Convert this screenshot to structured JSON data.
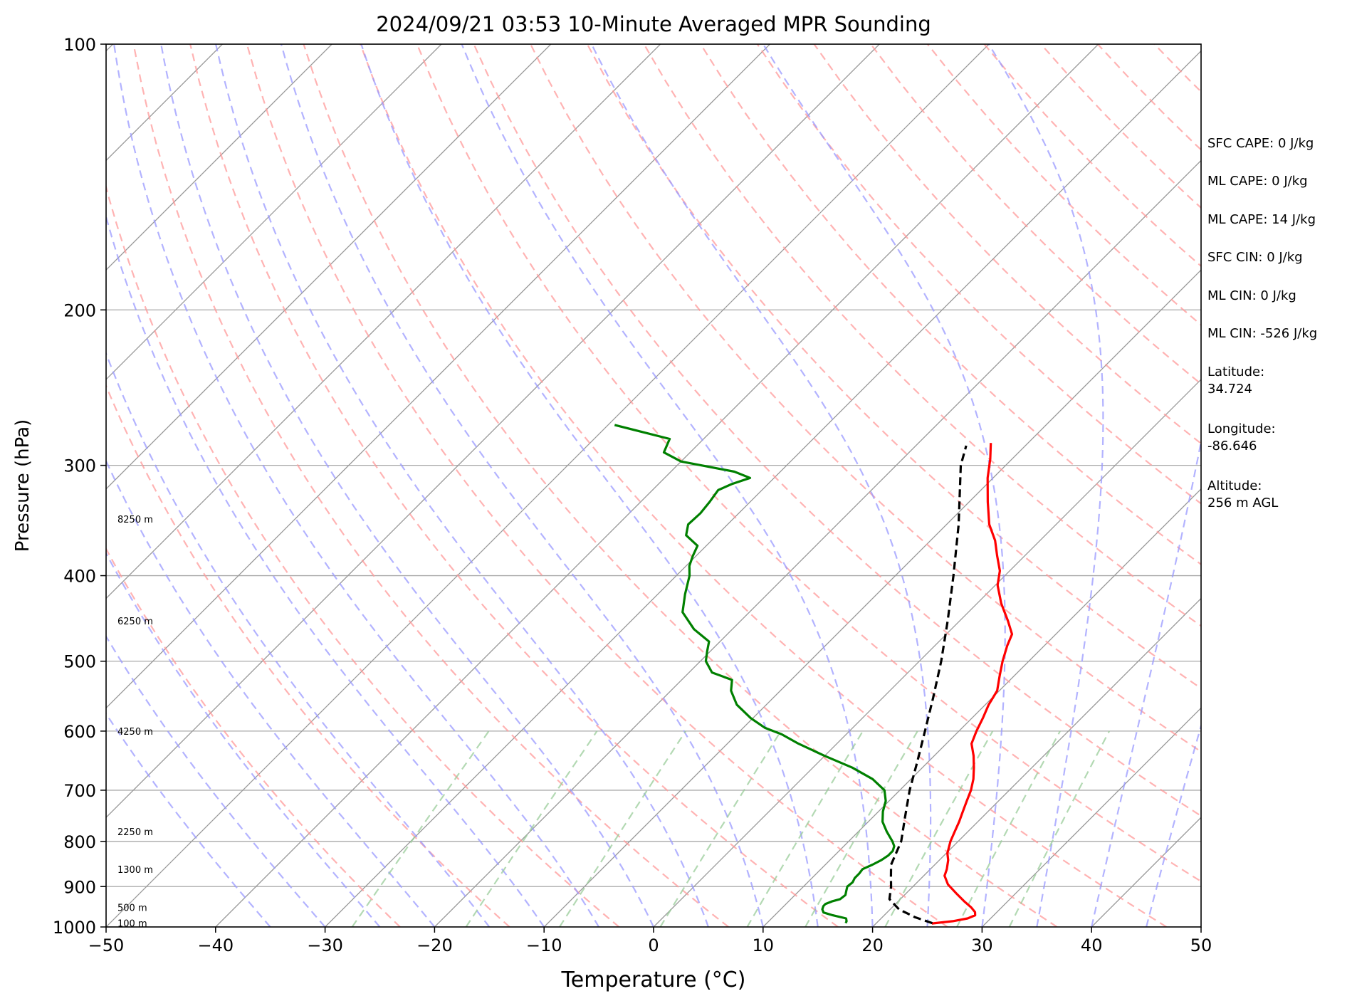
{
  "chart_data": {
    "type": "line",
    "subtype": "skew-t log-p",
    "title": "2024/09/21 03:53 10-Minute Averaged MPR Sounding",
    "xlabel": "Temperature (°C)",
    "ylabel": "Pressure (hPa)",
    "xlim": [
      -50,
      50
    ],
    "ylim": [
      1000,
      100
    ],
    "y_scale": "log",
    "x_ticks": [
      -50,
      -40,
      -30,
      -20,
      -10,
      0,
      10,
      20,
      30,
      40,
      50
    ],
    "x_tick_labels": [
      "−50",
      "−40",
      "−30",
      "−20",
      "−10",
      "0",
      "10",
      "20",
      "30",
      "40",
      "50"
    ],
    "y_ticks": [
      1000,
      900,
      800,
      700,
      600,
      500,
      400,
      300,
      200,
      100
    ],
    "y_tick_labels": [
      "1000",
      "900",
      "800",
      "700",
      "600",
      "500",
      "400",
      "300",
      "200",
      "100"
    ],
    "grid": true,
    "height_labels": [
      {
        "p": 990,
        "text": "100 m"
      },
      {
        "p": 950,
        "text": "500 m"
      },
      {
        "p": 860,
        "text": "1300 m"
      },
      {
        "p": 780,
        "text": "2250 m"
      },
      {
        "p": 600,
        "text": "4250 m"
      },
      {
        "p": 450,
        "text": "6250 m"
      },
      {
        "p": 345,
        "text": "8250 m"
      }
    ],
    "background_lines": {
      "isotherms": {
        "color": "#999999",
        "values_c": [
          -160,
          -150,
          -140,
          -130,
          -120,
          -110,
          -100,
          -90,
          -80,
          -70,
          -60,
          -50,
          -40,
          -30,
          -20,
          -10,
          0,
          10,
          20,
          30,
          40,
          50
        ]
      },
      "dry_adiabats": {
        "color": "#ff9999",
        "theta_k": [
          250,
          260,
          270,
          280,
          290,
          300,
          310,
          320,
          330,
          340,
          350,
          360,
          370,
          380,
          390,
          400,
          410,
          420,
          430,
          440,
          450,
          460,
          470,
          480,
          490,
          500
        ]
      },
      "moist_adiabats": {
        "color": "#9999ff",
        "start_c": [
          -35,
          -30,
          -25,
          -20,
          -15,
          -10,
          -5,
          0,
          5,
          10,
          15,
          20,
          25,
          30,
          35,
          40,
          45,
          50
        ]
      },
      "mixing_ratio": {
        "color": "#99cc99",
        "values_gkg": [
          0.4,
          1,
          2,
          4,
          7,
          10,
          16,
          24,
          32
        ],
        "p_top": 600
      }
    },
    "series": [
      {
        "color": "#ff0000",
        "points": [
          [
            991,
            25.1
          ],
          [
            985,
            26.8
          ],
          [
            978,
            27.9
          ],
          [
            970,
            28.3
          ],
          [
            962,
            28.0
          ],
          [
            950,
            27.2
          ],
          [
            935,
            26.0
          ],
          [
            915,
            24.5
          ],
          [
            895,
            23.0
          ],
          [
            875,
            21.9
          ],
          [
            860,
            21.5
          ],
          [
            840,
            20.8
          ],
          [
            825,
            20.1
          ],
          [
            800,
            19.3
          ],
          [
            780,
            18.8
          ],
          [
            760,
            18.3
          ],
          [
            740,
            17.7
          ],
          [
            720,
            17.1
          ],
          [
            700,
            16.5
          ],
          [
            680,
            15.7
          ],
          [
            660,
            14.7
          ],
          [
            640,
            13.6
          ],
          [
            620,
            12.3
          ],
          [
            600,
            11.6
          ],
          [
            580,
            11.0
          ],
          [
            560,
            10.3
          ],
          [
            540,
            9.8
          ],
          [
            520,
            8.7
          ],
          [
            500,
            7.6
          ],
          [
            480,
            6.6
          ],
          [
            466,
            6.0
          ],
          [
            450,
            4.4
          ],
          [
            430,
            2.2
          ],
          [
            410,
            0.2
          ],
          [
            395,
            -0.9
          ],
          [
            380,
            -2.5
          ],
          [
            365,
            -4.1
          ],
          [
            350,
            -6.1
          ],
          [
            330,
            -8.3
          ],
          [
            310,
            -10.5
          ],
          [
            295,
            -12.0
          ],
          [
            283,
            -13.4
          ]
        ]
      },
      {
        "color": "#008000",
        "points": [
          [
            990,
            17.2
          ],
          [
            985,
            17.1
          ],
          [
            978,
            16.8
          ],
          [
            970,
            15.3
          ],
          [
            963,
            14.2
          ],
          [
            955,
            13.8
          ],
          [
            947,
            13.6
          ],
          [
            942,
            13.6
          ],
          [
            935,
            14.0
          ],
          [
            930,
            14.5
          ],
          [
            920,
            14.6
          ],
          [
            910,
            14.3
          ],
          [
            900,
            14.0
          ],
          [
            890,
            14.1
          ],
          [
            880,
            13.9
          ],
          [
            870,
            13.9
          ],
          [
            860,
            13.8
          ],
          [
            850,
            14.3
          ],
          [
            840,
            14.7
          ],
          [
            830,
            14.9
          ],
          [
            820,
            14.9
          ],
          [
            810,
            14.6
          ],
          [
            800,
            14.0
          ],
          [
            780,
            12.6
          ],
          [
            760,
            11.3
          ],
          [
            740,
            10.4
          ],
          [
            720,
            9.7
          ],
          [
            700,
            8.6
          ],
          [
            680,
            6.5
          ],
          [
            660,
            3.6
          ],
          [
            640,
            0.0
          ],
          [
            620,
            -3.5
          ],
          [
            605,
            -5.9
          ],
          [
            595,
            -8.0
          ],
          [
            580,
            -10.2
          ],
          [
            560,
            -12.7
          ],
          [
            540,
            -14.5
          ],
          [
            525,
            -15.4
          ],
          [
            515,
            -17.9
          ],
          [
            500,
            -19.5
          ],
          [
            487,
            -20.3
          ],
          [
            475,
            -21.0
          ],
          [
            460,
            -23.5
          ],
          [
            440,
            -26.1
          ],
          [
            420,
            -27.5
          ],
          [
            400,
            -28.8
          ],
          [
            390,
            -29.7
          ],
          [
            380,
            -30.3
          ],
          [
            370,
            -30.8
          ],
          [
            360,
            -32.8
          ],
          [
            350,
            -33.6
          ],
          [
            340,
            -33.5
          ],
          [
            330,
            -33.7
          ],
          [
            320,
            -34.0
          ],
          [
            315,
            -33.3
          ],
          [
            310,
            -32.2
          ],
          [
            305,
            -34.2
          ],
          [
            297,
            -40.0
          ],
          [
            290,
            -42.4
          ],
          [
            280,
            -43.1
          ],
          [
            270,
            -49.4
          ]
        ]
      },
      {
        "color": "#000000",
        "dashed": true,
        "points": [
          [
            990,
            25.1
          ],
          [
            975,
            23.0
          ],
          [
            955,
            20.8
          ],
          [
            930,
            19.0
          ],
          [
            900,
            18.0
          ],
          [
            880,
            17.2
          ],
          [
            850,
            16.0
          ],
          [
            800,
            14.8
          ],
          [
            750,
            12.9
          ],
          [
            700,
            10.9
          ],
          [
            650,
            9.0
          ],
          [
            600,
            6.9
          ],
          [
            550,
            4.6
          ],
          [
            500,
            2.0
          ],
          [
            450,
            -1.1
          ],
          [
            400,
            -4.7
          ],
          [
            350,
            -8.9
          ],
          [
            300,
            -14.1
          ],
          [
            285,
            -15.4
          ]
        ]
      }
    ]
  },
  "info_panel": {
    "sfc_cape": "SFC CAPE: 0 J/kg",
    "ml_cape": "ML CAPE: 0 J/kg",
    "ml_cape_2": "ML CAPE: 14 J/kg",
    "sfc_cin": "SFC CIN: 0 J/kg",
    "ml_cin": "ML CIN: 0 J/kg",
    "ml_cin_2": "ML CIN: -526 J/kg",
    "latitude_label": "Latitude:",
    "latitude_value": "34.724",
    "longitude_label": "Longitude:",
    "longitude_value": "-86.646",
    "altitude_label": "Altitude:",
    "altitude_value": "256 m AGL"
  }
}
